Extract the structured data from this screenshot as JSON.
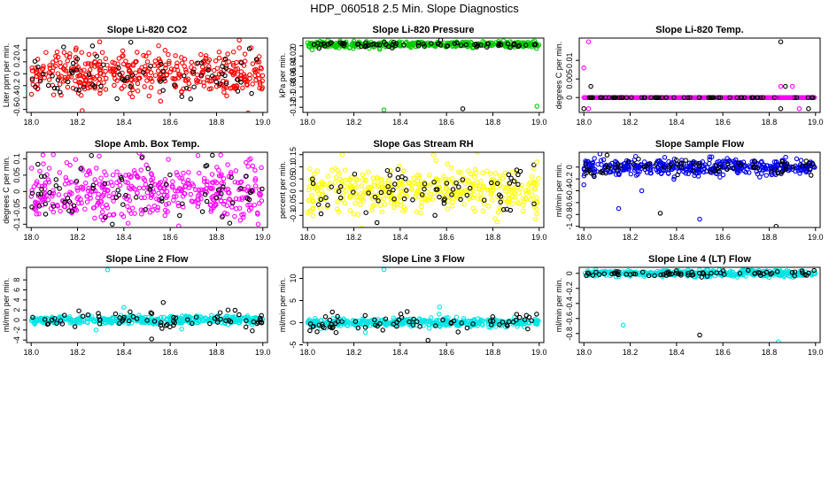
{
  "figure": {
    "title": "HDP_060518  2.5 Min. Slope Diagnostics",
    "background": "#ffffff"
  },
  "chart_data": [
    {
      "type": "scatter",
      "title": "Slope Li-820 CO2",
      "ylabel": "Liter ppm per min.",
      "xlim": [
        17.98,
        19.02
      ],
      "ylim": [
        -0.65,
        0.6
      ],
      "xticks": [
        18.0,
        18.2,
        18.4,
        18.6,
        18.8,
        19.0
      ],
      "yticks": [
        -0.6,
        -0.4,
        -0.2,
        0.0,
        0.2,
        0.4
      ],
      "colors": [
        "#ff0000",
        "#000000"
      ],
      "distribution": {
        "mean": 0.0,
        "sd": 0.18,
        "n_colored": 420,
        "n_black": 70
      },
      "outliers": [
        [
          18.22,
          -0.62
        ],
        [
          18.43,
          0.53
        ],
        [
          18.55,
          0.47
        ],
        [
          18.14,
          0.45
        ]
      ]
    },
    {
      "type": "scatter",
      "title": "Slope Li-820 Pressure",
      "ylabel": "kPa per min.",
      "xlim": [
        17.98,
        19.02
      ],
      "ylim": [
        -0.13,
        0.015
      ],
      "xticks": [
        18.0,
        18.2,
        18.4,
        18.6,
        18.8,
        19.0
      ],
      "yticks": [
        -0.12,
        -0.1,
        -0.08,
        -0.06,
        -0.04,
        -0.02,
        0.0
      ],
      "colors": [
        "#00cc00",
        "#000000"
      ],
      "distribution": {
        "mean": 0.002,
        "sd": 0.003,
        "n_colored": 420,
        "n_black": 70
      },
      "outliers": [
        [
          18.33,
          -0.125
        ],
        [
          18.67,
          -0.123
        ],
        [
          18.99,
          -0.118
        ],
        [
          18.05,
          -0.005
        ],
        [
          18.02,
          -0.008
        ]
      ]
    },
    {
      "type": "scatter",
      "title": "Slope Li-820 Temp.",
      "ylabel": "degrees C per min.",
      "xlim": [
        17.98,
        19.02
      ],
      "ylim": [
        -0.004,
        0.016
      ],
      "xticks": [
        18.0,
        18.2,
        18.4,
        18.6,
        18.8,
        19.0
      ],
      "yticks": [
        0.0,
        0.005,
        0.01
      ],
      "colors": [
        "#ff00ff",
        "#000000"
      ],
      "distribution": {
        "mean": 0.0,
        "sd": 0.0,
        "n_colored": 200,
        "n_black": 70
      },
      "outliers": [
        [
          18.02,
          0.015
        ],
        [
          18.85,
          0.015
        ],
        [
          18.0,
          0.008
        ],
        [
          18.03,
          0.003
        ],
        [
          18.85,
          0.003
        ],
        [
          18.87,
          0.003
        ],
        [
          18.9,
          0.003
        ],
        [
          18.0,
          -0.003
        ],
        [
          18.02,
          -0.003
        ],
        [
          18.85,
          -0.003
        ],
        [
          18.93,
          -0.003
        ],
        [
          18.97,
          -0.003
        ]
      ]
    },
    {
      "type": "scatter",
      "title": "Slope Amb. Box Temp.",
      "ylabel": "degrees C per min.",
      "xlim": [
        17.98,
        19.02
      ],
      "ylim": [
        -0.11,
        0.12
      ],
      "xticks": [
        18.0,
        18.2,
        18.4,
        18.6,
        18.8,
        19.0
      ],
      "yticks": [
        -0.1,
        -0.05,
        0.0,
        0.05,
        0.1
      ],
      "colors": [
        "#ff00ff",
        "#000000"
      ],
      "distribution": {
        "mean": 0.0,
        "sd": 0.045,
        "n_colored": 420,
        "n_black": 70
      },
      "outliers": [
        [
          18.72,
          0.11
        ],
        [
          18.35,
          -0.1
        ],
        [
          18.98,
          -0.1
        ],
        [
          18.26,
          0.11
        ]
      ]
    },
    {
      "type": "scatter",
      "title": "Slope Gas Stream RH",
      "ylabel": "percent per min.",
      "xlim": [
        17.98,
        19.02
      ],
      "ylim": [
        -0.15,
        0.16
      ],
      "xticks": [
        18.0,
        18.2,
        18.4,
        18.6,
        18.8,
        19.0
      ],
      "yticks": [
        -0.1,
        -0.05,
        0.0,
        0.05,
        0.1,
        0.15
      ],
      "colors": [
        "#ffff00",
        "#000000"
      ],
      "distribution": {
        "mean": 0.0,
        "sd": 0.045,
        "n_colored": 420,
        "n_black": 70
      },
      "outliers": [
        [
          18.15,
          0.15
        ],
        [
          18.3,
          -0.13
        ],
        [
          18.99,
          0.12
        ],
        [
          18.55,
          -0.1
        ]
      ]
    },
    {
      "type": "scatter",
      "title": "Slope Sample Flow",
      "ylabel": "ml/min per min.",
      "xlim": [
        17.98,
        19.02
      ],
      "ylim": [
        -1.02,
        0.25
      ],
      "xticks": [
        18.0,
        18.2,
        18.4,
        18.6,
        18.8,
        19.0
      ],
      "yticks": [
        -1.0,
        -0.8,
        -0.6,
        -0.4,
        -0.2,
        0.0
      ],
      "colors": [
        "#0000ee",
        "#000000"
      ],
      "distribution": {
        "mean": 0.0,
        "sd": 0.07,
        "n_colored": 420,
        "n_black": 70
      },
      "outliers": [
        [
          18.15,
          -0.7
        ],
        [
          18.33,
          -0.78
        ],
        [
          18.5,
          -0.88
        ],
        [
          18.83,
          -1.0
        ],
        [
          18.25,
          -0.4
        ],
        [
          18.1,
          0.2
        ],
        [
          18.0,
          -0.3
        ],
        [
          18.96,
          0.1
        ]
      ]
    },
    {
      "type": "scatter",
      "title": "Slope Line 2 Flow",
      "ylabel": "ml/min per min.",
      "xlim": [
        17.98,
        19.02
      ],
      "ylim": [
        -4.5,
        10.5
      ],
      "xticks": [
        18.0,
        18.2,
        18.4,
        18.6,
        18.8,
        19.0
      ],
      "yticks": [
        -4,
        -2,
        0,
        2,
        4,
        6,
        8
      ],
      "colors": [
        "#00e5e5",
        "#000000"
      ],
      "distribution": {
        "mean": 0.0,
        "sd": 0.35,
        "n_colored": 420,
        "n_black": 70
      },
      "outliers": [
        [
          18.33,
          10
        ],
        [
          18.52,
          -3.8
        ],
        [
          18.4,
          2.5
        ],
        [
          18.57,
          3.5
        ],
        [
          18.28,
          -2
        ],
        [
          18.85,
          2
        ],
        [
          18.65,
          -1.8
        ]
      ]
    },
    {
      "type": "scatter",
      "title": "Slope Line 3 Flow",
      "ylabel": "ml/min per min.",
      "xlim": [
        17.98,
        19.02
      ],
      "ylim": [
        -4.5,
        12.5
      ],
      "xticks": [
        18.0,
        18.2,
        18.4,
        18.6,
        18.8,
        19.0
      ],
      "yticks": [
        -5,
        0,
        5,
        10
      ],
      "colors": [
        "#00e5e5",
        "#000000"
      ],
      "distribution": {
        "mean": 0.0,
        "sd": 0.45,
        "n_colored": 420,
        "n_black": 70
      },
      "outliers": [
        [
          18.33,
          12
        ],
        [
          18.52,
          -4
        ],
        [
          18.57,
          3.5
        ],
        [
          18.43,
          2.5
        ],
        [
          18.25,
          -2.2
        ],
        [
          18.65,
          -2.1
        ]
      ]
    },
    {
      "type": "scatter",
      "title": "Slope Line 4 (LT) Flow",
      "ylabel": "ml/min per min.",
      "xlim": [
        17.98,
        19.02
      ],
      "ylim": [
        -0.92,
        0.08
      ],
      "xticks": [
        18.0,
        18.2,
        18.4,
        18.6,
        18.8,
        19.0
      ],
      "yticks": [
        -0.8,
        -0.6,
        -0.4,
        -0.2,
        0.0
      ],
      "colors": [
        "#00e5e5",
        "#000000"
      ],
      "distribution": {
        "mean": 0.0,
        "sd": 0.02,
        "n_colored": 420,
        "n_black": 70
      },
      "outliers": [
        [
          18.17,
          -0.69
        ],
        [
          18.5,
          -0.82
        ],
        [
          18.84,
          -0.91
        ]
      ]
    }
  ]
}
